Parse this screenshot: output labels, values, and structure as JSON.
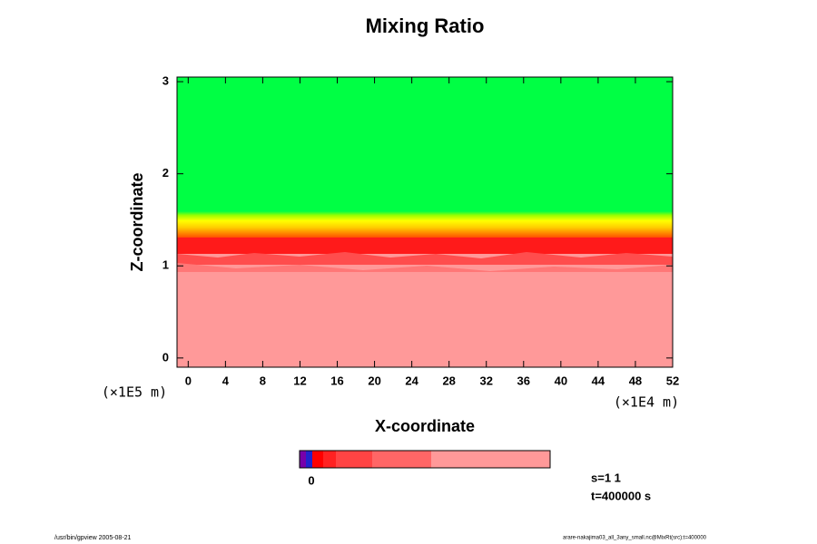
{
  "chart_data": {
    "type": "contour",
    "title": "Mixing Ratio",
    "x_label": "X-coordinate",
    "y_label": "Z-coordinate",
    "x_unit": "(×1E4 m)",
    "y_unit": "(×1E5 m)",
    "xlim": [
      -1.2,
      52
    ],
    "xticks": [
      0,
      4,
      8,
      12,
      16,
      20,
      24,
      28,
      32,
      36,
      40,
      44,
      48,
      52
    ],
    "ylim": [
      -0.1,
      3.05
    ],
    "yticks": [
      0,
      1,
      2,
      3
    ],
    "colorbar_ticks": [
      0
    ],
    "info": [
      "s=1 1",
      "t=400000 s"
    ],
    "footer_left": "/usr/bin/gpview 2005-08-21",
    "footer_right": "arare-nakajima03_all_3any_small.nc@MixRt(src):t=400000"
  }
}
